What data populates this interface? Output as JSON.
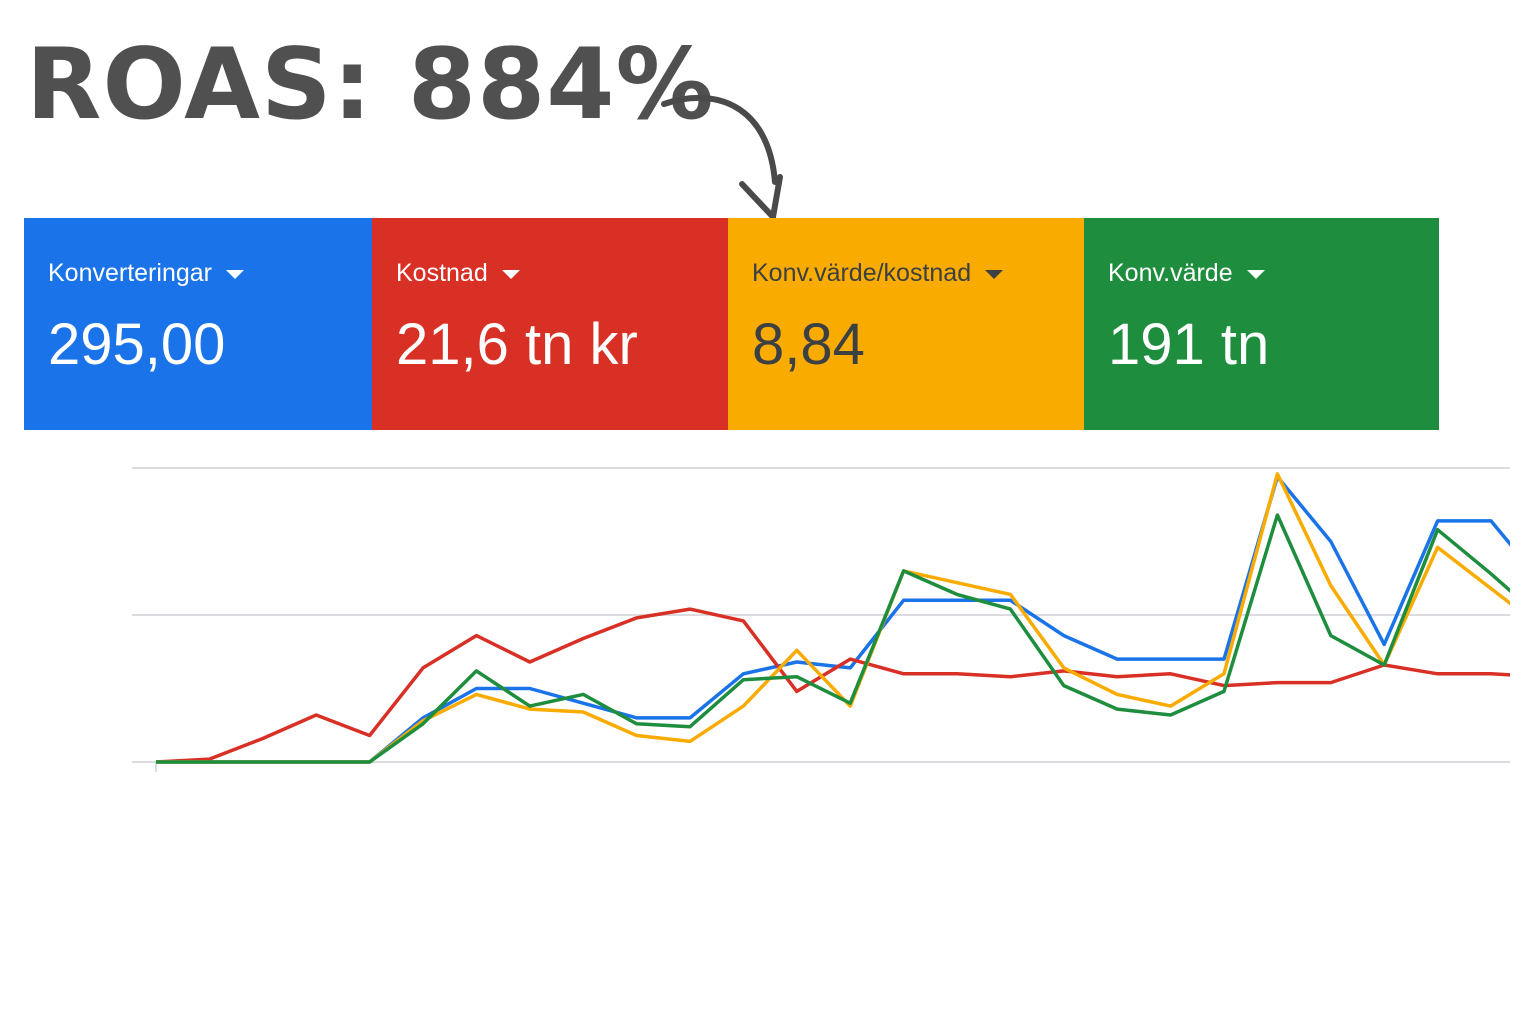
{
  "headline": {
    "text": "ROAS: 884%"
  },
  "annotation": {
    "arrow_icon": "curved-arrow-down-icon",
    "color": "#4a4a4a"
  },
  "metrics": [
    {
      "label": "Konverteringar",
      "value": "295,00",
      "bg": "#1a73e8",
      "fg": "#ffffff",
      "icon": "dropdown-caret-icon"
    },
    {
      "label": "Kostnad",
      "value": "21,6 tn kr",
      "bg": "#d93025",
      "fg": "#ffffff",
      "icon": "dropdown-caret-icon"
    },
    {
      "label": "Konv.värde/kostnad",
      "value": "8,84",
      "bg": "#f9ab00",
      "fg": "#3c4043",
      "icon": "dropdown-caret-icon"
    },
    {
      "label": "Konv.värde",
      "value": "191 tn",
      "bg": "#1e8e3e",
      "fg": "#ffffff",
      "icon": "dropdown-caret-icon"
    }
  ],
  "chart_data": {
    "type": "line",
    "x": [
      0,
      1,
      2,
      3,
      4,
      5,
      6,
      7,
      8,
      9,
      10,
      11,
      12,
      13,
      14,
      15,
      16,
      17,
      18,
      19,
      20,
      21,
      22,
      23,
      24,
      25,
      26
    ],
    "ylim": [
      0,
      100
    ],
    "grid": true,
    "gridlines": [
      0,
      50,
      100
    ],
    "legend": "none",
    "series": [
      {
        "color": "#1a73e8",
        "values": [
          0,
          0,
          0,
          0,
          0,
          15,
          25,
          25,
          20,
          15,
          15,
          30,
          34,
          32,
          55,
          55,
          55,
          43,
          35,
          35,
          35,
          97,
          75,
          40,
          82,
          82,
          60
        ]
      },
      {
        "color": "#d93025",
        "values": [
          0,
          1,
          8,
          16,
          9,
          32,
          43,
          34,
          42,
          49,
          52,
          48,
          24,
          35,
          30,
          30,
          29,
          31,
          29,
          30,
          26,
          27,
          27,
          33,
          30,
          30,
          29
        ]
      },
      {
        "color": "#f9ab00",
        "values": [
          0,
          0,
          0,
          0,
          0,
          14,
          23,
          18,
          17,
          9,
          7,
          19,
          38,
          19,
          65,
          61,
          57,
          32,
          23,
          19,
          30,
          98,
          60,
          33,
          73,
          59,
          45
        ]
      },
      {
        "color": "#1e8e3e",
        "values": [
          0,
          0,
          0,
          0,
          0,
          13,
          31,
          19,
          23,
          13,
          12,
          28,
          29,
          20,
          65,
          57,
          52,
          26,
          18,
          16,
          24,
          84,
          43,
          33,
          79,
          64,
          48
        ]
      }
    ]
  }
}
